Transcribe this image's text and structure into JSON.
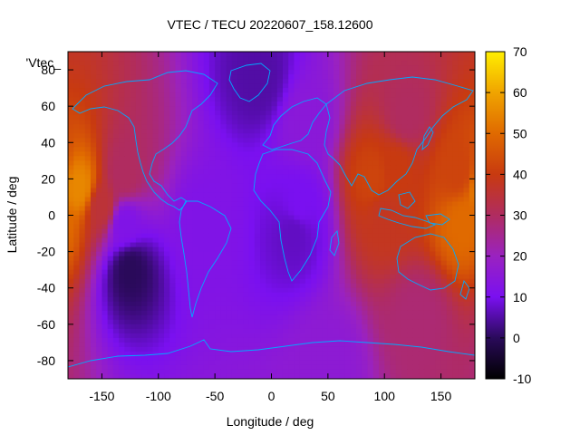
{
  "chart_data": {
    "type": "heatmap",
    "title": "VTEC / TECU 20220607_158.12600",
    "xlabel": "Longitude / deg",
    "ylabel": "Latitude / deg",
    "legend_label": "'Vtec_",
    "legend_placement": "top-left",
    "xlim": [
      -180,
      180
    ],
    "ylim": [
      -90,
      90
    ],
    "x_ticks": [
      -150,
      -100,
      -50,
      0,
      50,
      100,
      150
    ],
    "x_tick_labels": [
      "-150",
      "-100",
      "-50",
      "0",
      "50",
      "100",
      "150"
    ],
    "y_ticks": [
      -80,
      -60,
      -40,
      -20,
      0,
      20,
      40,
      60,
      80
    ],
    "y_tick_labels": [
      "-80",
      "-60",
      "-40",
      "-20",
      "0",
      "20",
      "40",
      "60",
      "80"
    ],
    "colorbar": {
      "range": [
        -10,
        70
      ],
      "ticks": [
        -10,
        0,
        10,
        20,
        30,
        40,
        50,
        60,
        70
      ],
      "tick_labels": [
        "-10",
        "0",
        "10",
        "20",
        "30",
        "40",
        "50",
        "60",
        "70"
      ],
      "colormap": "black-purple-red-yellow"
    },
    "grid": false,
    "coastline_color": "#00aaff",
    "grid_resolution": {
      "lon_step": 5,
      "lat_step": 2.5
    },
    "field_features": [
      {
        "lon": -170,
        "lat": 15,
        "vtec": 55
      },
      {
        "lon": -150,
        "lat": 5,
        "vtec": 35
      },
      {
        "lon": -130,
        "lat": 22,
        "vtec": 30
      },
      {
        "lon": -130,
        "lat": -5,
        "vtec": 12
      },
      {
        "lon": -125,
        "lat": -30,
        "vtec": 0
      },
      {
        "lon": -60,
        "lat": -5,
        "vtec": 12
      },
      {
        "lon": 20,
        "lat": -10,
        "vtec": 7
      },
      {
        "lon": 25,
        "lat": 5,
        "vtec": 10
      },
      {
        "lon": 30,
        "lat": 50,
        "vtec": 15
      },
      {
        "lon": 90,
        "lat": 20,
        "vtec": 42
      },
      {
        "lon": 110,
        "lat": 25,
        "vtec": 40
      },
      {
        "lon": 100,
        "lat": 0,
        "vtec": 38
      },
      {
        "lon": 165,
        "lat": 25,
        "vtec": 42
      },
      {
        "lon": 170,
        "lat": -5,
        "vtec": 50
      },
      {
        "lon": 120,
        "lat": 55,
        "vtec": 30
      },
      {
        "lon": 130,
        "lat": -55,
        "vtec": 28
      },
      {
        "lon": -10,
        "lat": 75,
        "vtec": 5
      },
      {
        "lon": 50,
        "lat": -80,
        "vtec": 16
      }
    ]
  }
}
